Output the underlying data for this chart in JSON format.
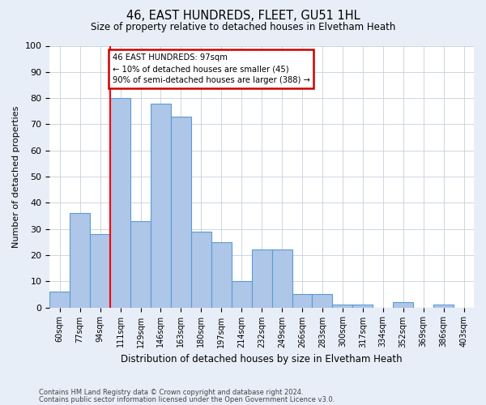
{
  "title_line1": "46, EAST HUNDREDS, FLEET, GU51 1HL",
  "title_line2": "Size of property relative to detached houses in Elvetham Heath",
  "xlabel": "Distribution of detached houses by size in Elvetham Heath",
  "ylabel": "Number of detached properties",
  "categories": [
    "60sqm",
    "77sqm",
    "94sqm",
    "111sqm",
    "129sqm",
    "146sqm",
    "163sqm",
    "180sqm",
    "197sqm",
    "214sqm",
    "232sqm",
    "249sqm",
    "266sqm",
    "283sqm",
    "300sqm",
    "317sqm",
    "334sqm",
    "352sqm",
    "369sqm",
    "386sqm",
    "403sqm"
  ],
  "values": [
    6,
    36,
    28,
    80,
    33,
    78,
    73,
    29,
    25,
    10,
    22,
    22,
    5,
    5,
    1,
    1,
    0,
    2,
    0,
    1,
    0
  ],
  "bar_color": "#aec6e8",
  "bar_edge_color": "#5b9bd5",
  "annotation_text": "46 EAST HUNDREDS: 97sqm\n← 10% of detached houses are smaller (45)\n90% of semi-detached houses are larger (388) →",
  "annotation_box_color": "#ffffff",
  "annotation_box_edge_color": "#cc0000",
  "ylim": [
    0,
    100
  ],
  "yticks": [
    0,
    10,
    20,
    30,
    40,
    50,
    60,
    70,
    80,
    90,
    100
  ],
  "footer_line1": "Contains HM Land Registry data © Crown copyright and database right 2024.",
  "footer_line2": "Contains public sector information licensed under the Open Government Licence v3.0.",
  "bg_color": "#e8eef8",
  "plot_bg_color": "#ffffff",
  "grid_color": "#c8d0dc"
}
